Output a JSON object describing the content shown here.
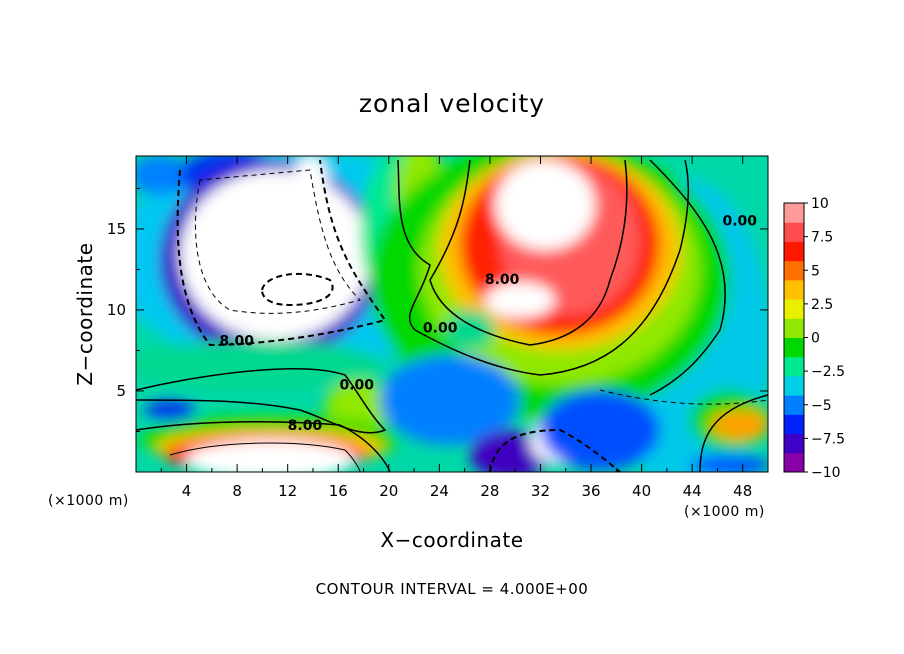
{
  "chart_data": {
    "type": "heatmap",
    "title": "zonal velocity",
    "xlabel": "X−coordinate",
    "ylabel": "Z−coordinate",
    "x_unit": "(×1000 m)",
    "y_unit": "(×1000 m)",
    "xlim": [
      0,
      50
    ],
    "ylim": [
      0,
      19.5
    ],
    "x_ticks": [
      4,
      8,
      12,
      16,
      20,
      24,
      28,
      32,
      36,
      40,
      44,
      48
    ],
    "x_tick_labels": [
      "4",
      "8",
      "12",
      "16",
      "20",
      "24",
      "28",
      "32",
      "36",
      "40",
      "44",
      "48"
    ],
    "y_ticks": [
      5,
      10,
      15
    ],
    "y_tick_labels": [
      "5",
      "10",
      "15"
    ],
    "colorbar": {
      "range": [
        -10,
        10
      ],
      "ticks": [
        10,
        7.5,
        5,
        2.5,
        0,
        -2.5,
        -5,
        -7.5,
        -10
      ],
      "labels": [
        "10",
        "7.5",
        "5",
        "2.5",
        "0",
        "−2.5",
        "−5",
        "−7.5",
        "−10"
      ],
      "colors": [
        "#8a00a8",
        "#3f00c8",
        "#0022ff",
        "#0080ff",
        "#00cfe8",
        "#00e890",
        "#00d800",
        "#90e800",
        "#e8f000",
        "#ffc000",
        "#ff7000",
        "#ff1800",
        "#ff4c4c",
        "#ff9a9a"
      ]
    },
    "contour_interval": 4,
    "contour_labels": [
      {
        "text": "8.00",
        "x": 6.6,
        "z": 7.8
      },
      {
        "text": "0.00",
        "x": 16.1,
        "z": 5.1
      },
      {
        "text": "8.00",
        "x": 12.0,
        "z": 2.6
      },
      {
        "text": "8.00",
        "x": 27.6,
        "z": 11.6
      },
      {
        "text": "0.00",
        "x": 22.7,
        "z": 8.6
      },
      {
        "text": "0.00",
        "x": 46.4,
        "z": 15.2
      }
    ],
    "footer": "CONTOUR INTERVAL = 4.000E+00"
  }
}
